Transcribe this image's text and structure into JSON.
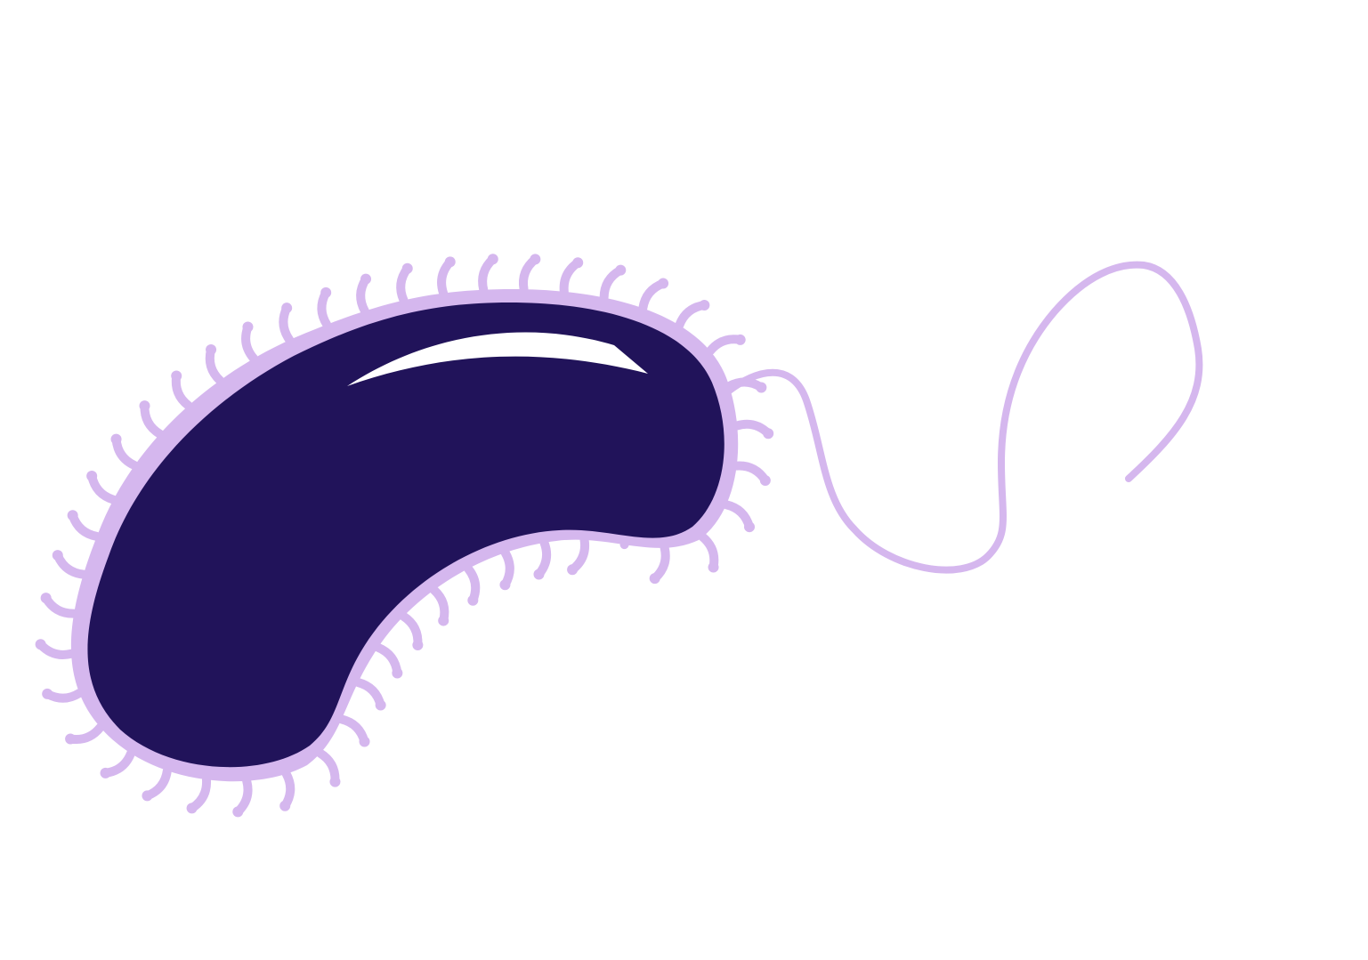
{
  "illustration": {
    "subject": "bacterium-icon",
    "colors": {
      "background": "#ffffff",
      "cell_body": "#21135a",
      "membrane": "#d5b7ee",
      "flagellum": "#d5b7ee",
      "highlight": "#ffffff"
    },
    "parts": [
      "cell-body",
      "cell-membrane",
      "pili",
      "flagellum",
      "highlight"
    ]
  }
}
